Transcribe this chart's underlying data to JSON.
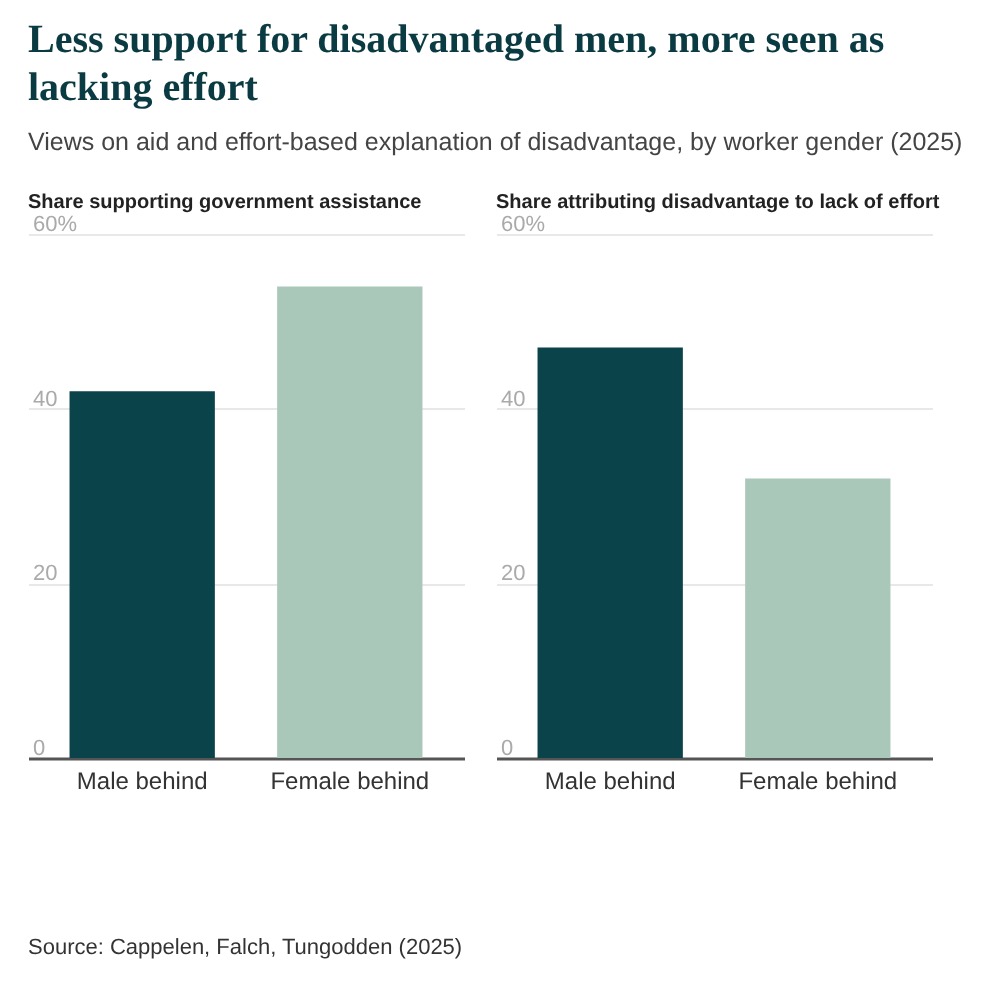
{
  "chart_data": [
    {
      "type": "bar",
      "title": "Less support for disadvantaged men, more seen as lacking effort",
      "subtitle": "Views on aid and effort-based explanation of disadvantage, by worker gender (2025)",
      "ylabel": "Share supporting government assistance",
      "categories": [
        "Male behind",
        "Female behind"
      ],
      "values": [
        42,
        54
      ],
      "colors": [
        "#0b434a",
        "#a9c8b9"
      ],
      "ylim": [
        0,
        60
      ],
      "yticks": [
        0,
        20,
        40,
        {
          "value": 60,
          "label": "60%"
        }
      ],
      "grid": "y",
      "annotations": [
        "Source: Cappelen, Falch, Tungodden (2025)"
      ]
    },
    {
      "type": "bar",
      "ylabel": "Share attributing disadvantage to lack of effort",
      "categories": [
        "Male behind",
        "Female behind"
      ],
      "values": [
        47,
        32
      ],
      "colors": [
        "#0b434a",
        "#a9c8b9"
      ],
      "ylim": [
        0,
        60
      ],
      "yticks": [
        0,
        20,
        40,
        {
          "value": 60,
          "label": "60%"
        }
      ],
      "grid": "y"
    }
  ]
}
